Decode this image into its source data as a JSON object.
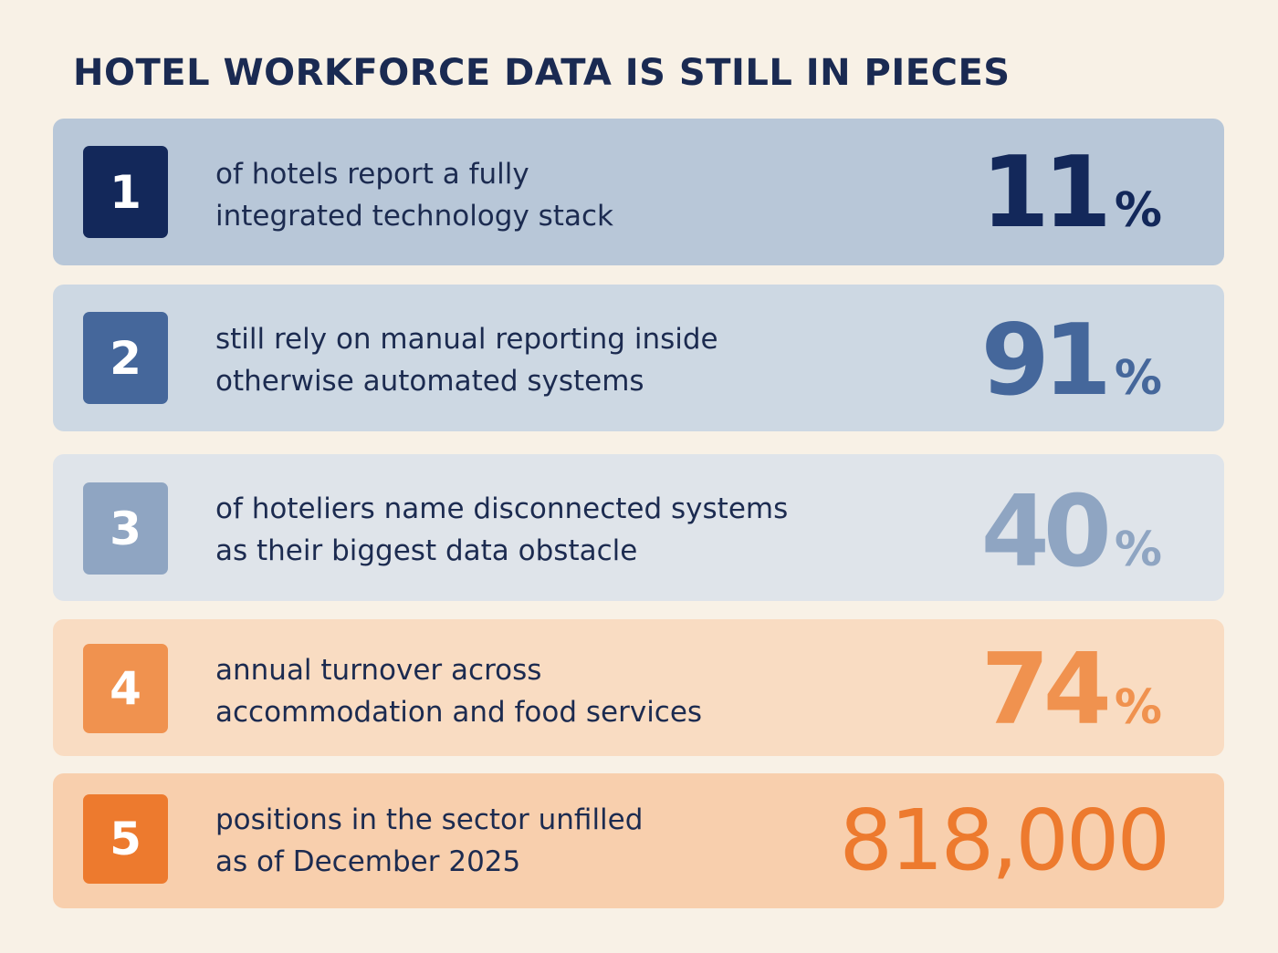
{
  "title": "HOTEL WORKFORCE DATA IS STILL IN PIECES",
  "rows": [
    {
      "number": "1",
      "line1": "of hotels report a fully",
      "line2": "integrated technology stack",
      "value": "11",
      "unit": "%",
      "row_color": "#b8c7d8",
      "badge_color": "#13285a",
      "value_color": "#13285a"
    },
    {
      "number": "2",
      "line1": "still rely on manual reporting inside",
      "line2": "otherwise automated systems",
      "value": "91",
      "unit": "%",
      "row_color": "#cdd8e3",
      "badge_color": "#45679b",
      "value_color": "#45679b"
    },
    {
      "number": "3",
      "line1": "of hoteliers name disconnected systems",
      "line2": "as their biggest data obstacle",
      "value": "40",
      "unit": "%",
      "row_color": "#dfe4ea",
      "badge_color": "#8fa5c2",
      "value_color": "#8fa5c2"
    },
    {
      "number": "4",
      "line1": "annual turnover across",
      "line2": "accommodation and food services",
      "value": "74",
      "unit": "%",
      "row_color": "#f9dcc2",
      "badge_color": "#f0924f",
      "value_color": "#f0924f"
    },
    {
      "number": "5",
      "line1": "positions in the sector unfilled",
      "line2": "as of December 2025",
      "value": "818,000",
      "unit": "",
      "row_color": "#f8cfad",
      "badge_color": "#ed7a2e",
      "value_color": "#ed7a2e"
    }
  ]
}
